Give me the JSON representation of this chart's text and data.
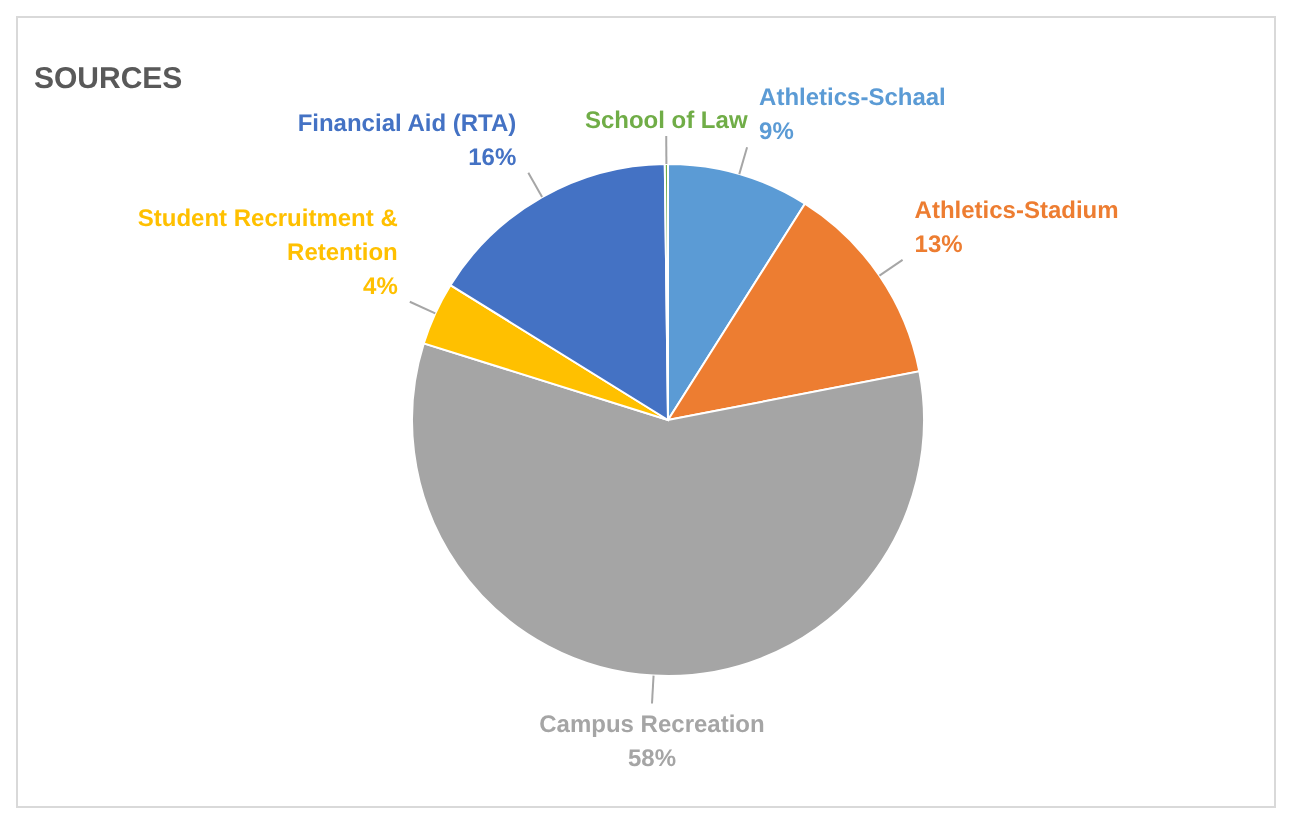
{
  "chart_data": {
    "type": "pie",
    "title": "SOURCES",
    "categories": [
      "Athletics-Schaal",
      "Athletics-Stadium",
      "Campus Recreation",
      "Student Recruitment & Retention",
      "Financial Aid (RTA)",
      "School of Law"
    ],
    "values": [
      9,
      13,
      58,
      4,
      16,
      0.2
    ],
    "value_labels": [
      "9%",
      "13%",
      "58%",
      "4%",
      "16%",
      null
    ],
    "colors": [
      "#5b9bd5",
      "#ed7d31",
      "#a5a5a5",
      "#ffc000",
      "#4472c4",
      "#70ad47"
    ],
    "legend": false
  }
}
